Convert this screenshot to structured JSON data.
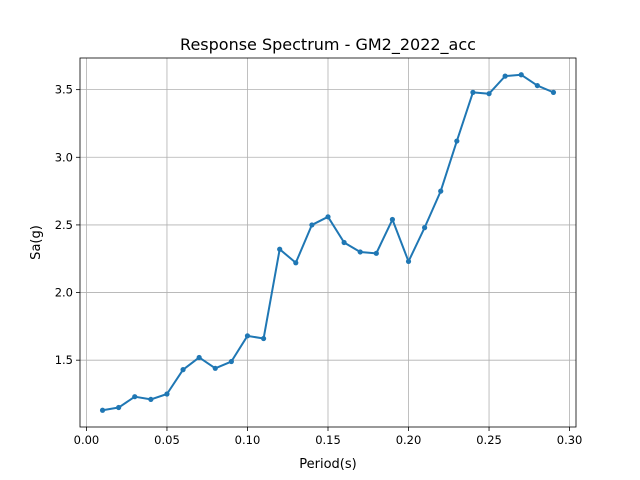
{
  "chart_data": {
    "type": "line",
    "title": "Response Spectrum - GM2_2022_acc",
    "xlabel": "Period(s)",
    "ylabel": "Sa(g)",
    "xlim": [
      -0.004,
      0.304
    ],
    "ylim": [
      1.006,
      3.734
    ],
    "grid": true,
    "xticks": [
      0.0,
      0.05,
      0.1,
      0.15,
      0.2,
      0.25,
      0.3
    ],
    "xtick_labels": [
      "0.00",
      "0.05",
      "0.10",
      "0.15",
      "0.20",
      "0.25",
      "0.30"
    ],
    "yticks": [
      1.5,
      2.0,
      2.5,
      3.0,
      3.5
    ],
    "ytick_labels": [
      "1.5",
      "2.0",
      "2.5",
      "3.0",
      "3.5"
    ],
    "series": [
      {
        "color": "#1f77b4",
        "x": [
          0.01,
          0.02,
          0.03,
          0.04,
          0.05,
          0.06,
          0.07,
          0.08,
          0.09,
          0.1,
          0.11,
          0.12,
          0.13,
          0.14,
          0.15,
          0.16,
          0.17,
          0.18,
          0.19,
          0.2,
          0.21,
          0.22,
          0.23,
          0.24,
          0.25,
          0.26,
          0.27,
          0.28,
          0.29
        ],
        "y": [
          1.13,
          1.15,
          1.23,
          1.21,
          1.25,
          1.43,
          1.52,
          1.44,
          1.49,
          1.68,
          1.66,
          2.32,
          2.22,
          2.5,
          2.56,
          2.37,
          2.3,
          2.29,
          2.54,
          2.23,
          2.48,
          2.75,
          3.12,
          3.48,
          3.47,
          3.6,
          3.61,
          3.53,
          3.48
        ]
      }
    ]
  }
}
